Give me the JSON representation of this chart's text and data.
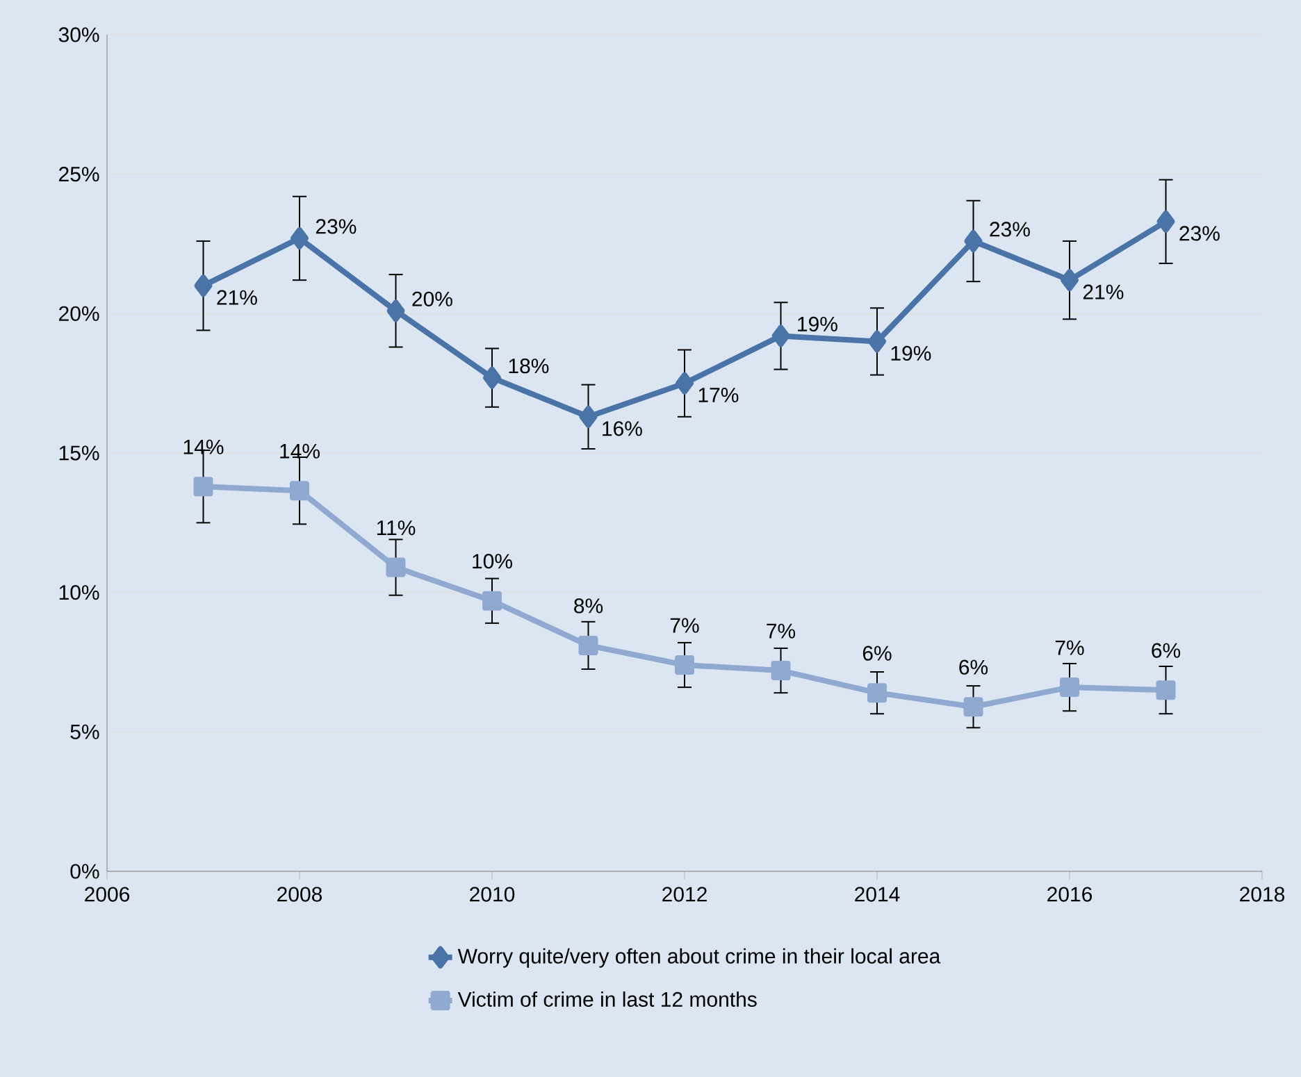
{
  "chart_data": {
    "type": "line",
    "x": [
      2007,
      2008,
      2009,
      2010,
      2011,
      2012,
      2013,
      2014,
      2015,
      2016,
      2017
    ],
    "series": [
      {
        "name": "Worry quite/very often about crime in their local area",
        "color": "#4a74a8",
        "marker": "diamond",
        "values": [
          21.0,
          22.7,
          20.1,
          17.7,
          16.3,
          17.5,
          19.2,
          19.0,
          22.6,
          21.2,
          23.3
        ],
        "errors": [
          1.6,
          1.5,
          1.3,
          1.05,
          1.15,
          1.2,
          1.2,
          1.2,
          1.45,
          1.4,
          1.5
        ],
        "value_labels": [
          "21%",
          "23%",
          "20%",
          "18%",
          "16%",
          "17%",
          "19%",
          "19%",
          "23%",
          "21%",
          "23%"
        ]
      },
      {
        "name": "Victim of crime in last 12 months",
        "color": "#8fa9d0",
        "marker": "square",
        "values": [
          13.8,
          13.65,
          10.9,
          9.7,
          8.1,
          7.4,
          7.2,
          6.4,
          5.9,
          6.6,
          6.5
        ],
        "errors": [
          1.3,
          1.2,
          1.0,
          0.8,
          0.85,
          0.8,
          0.8,
          0.75,
          0.75,
          0.85,
          0.85
        ],
        "value_labels": [
          "14%",
          "14%",
          "11%",
          "10%",
          "8%",
          "7%",
          "7%",
          "6%",
          "6%",
          "7%",
          "6%"
        ]
      }
    ],
    "xlim": [
      2006,
      2018
    ],
    "xticks": [
      2006,
      2008,
      2010,
      2012,
      2014,
      2016,
      2018
    ],
    "ylim": [
      0,
      30
    ],
    "yticks": [
      {
        "value": 0,
        "label": "0%"
      },
      {
        "value": 5,
        "label": "5%"
      },
      {
        "value": 10,
        "label": "10%"
      },
      {
        "value": 15,
        "label": "15%"
      },
      {
        "value": 20,
        "label": "20%"
      },
      {
        "value": 25,
        "label": "25%"
      },
      {
        "value": 30,
        "label": "30%"
      }
    ],
    "grid": "y",
    "legend": "bottom"
  }
}
